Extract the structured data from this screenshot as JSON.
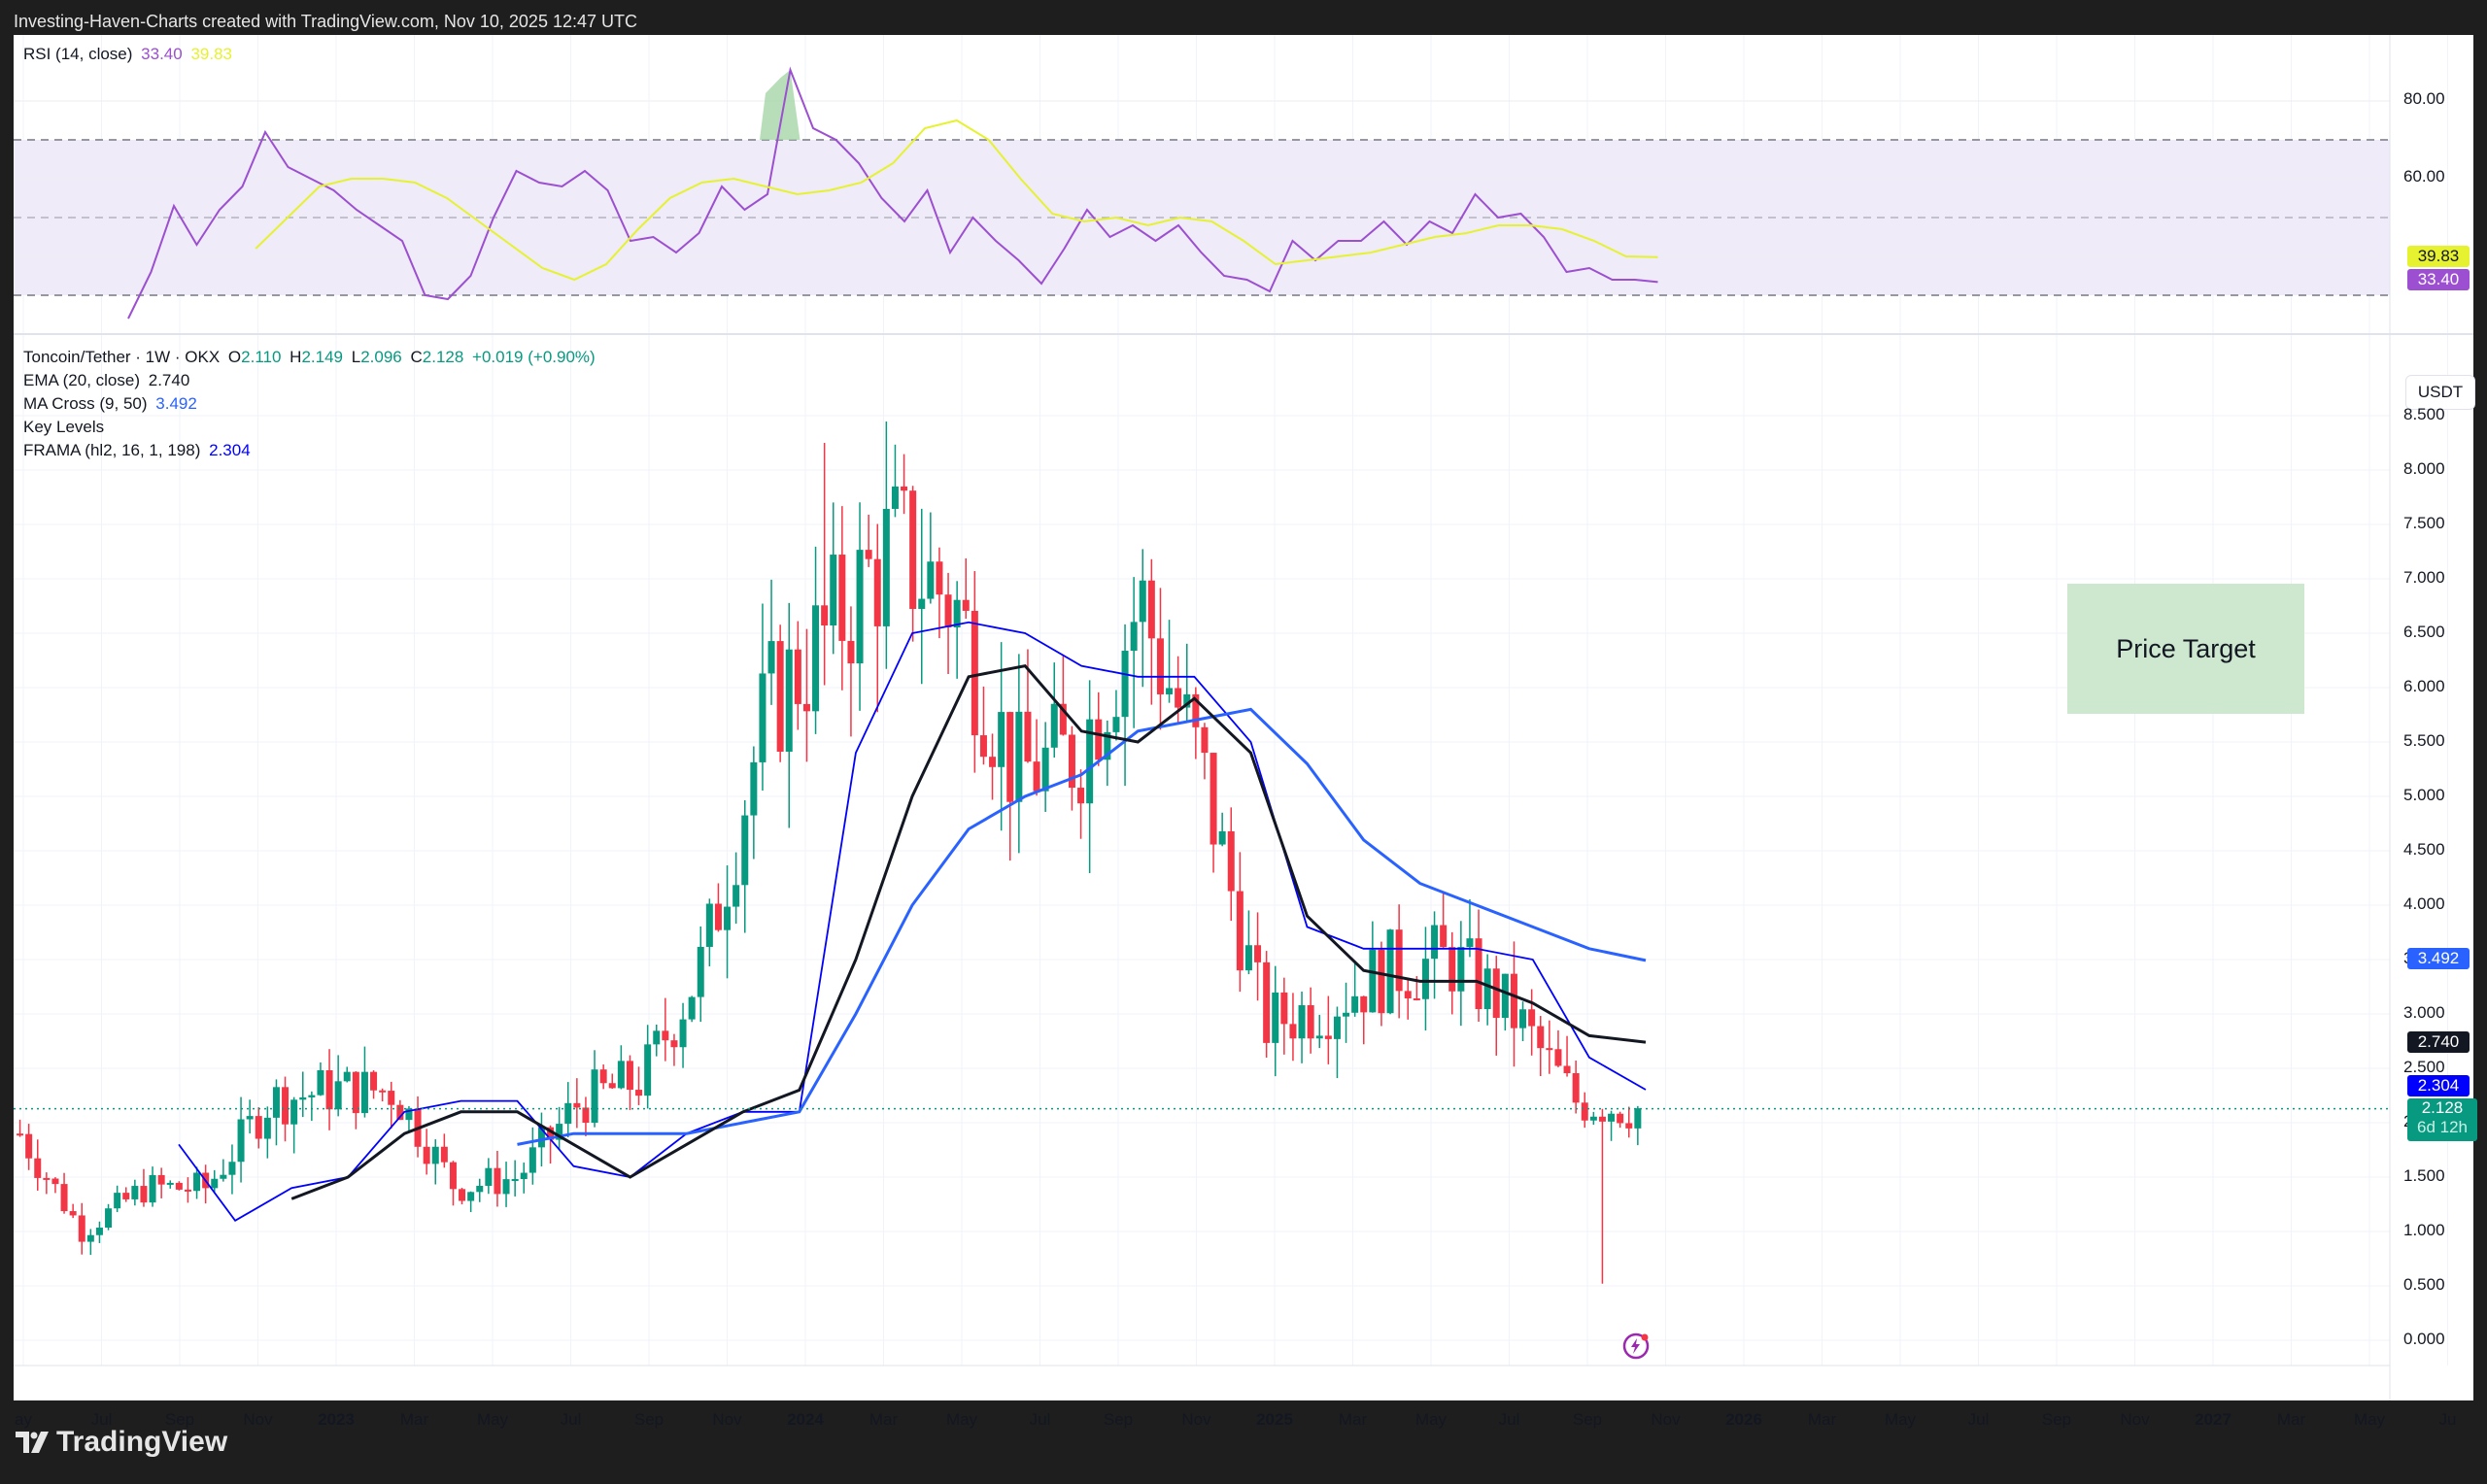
{
  "header": {
    "title": "Investing-Haven-Charts created with TradingView.com, Nov 10, 2025 12:47 UTC"
  },
  "rsi_pane": {
    "label": "RSI (14, close)",
    "rsi_value": "33.40",
    "ma_value": "39.83",
    "y_ticks": [
      "80.00",
      "60.00"
    ],
    "tag_ma": "39.83",
    "tag_rsi": "33.40",
    "colors": {
      "rsi": "#9c4fd0",
      "ma": "#e6f230",
      "band": "#efebf8",
      "overbought_fill": "#a5d6a7"
    }
  },
  "price_pane": {
    "symbol_line": {
      "symbol": "Toncoin/Tether · 1W · OKX",
      "o_label": "O",
      "o": "2.110",
      "h_label": "H",
      "h": "2.149",
      "l_label": "L",
      "l": "2.096",
      "c_label": "C",
      "c": "2.128",
      "change": "+0.019 (+0.90%)"
    },
    "indicators": [
      {
        "label": "EMA (20, close)",
        "value": "2.740",
        "color": "#131722"
      },
      {
        "label": "MA Cross (9, 50)",
        "value": "3.492",
        "color": "#2962ff"
      },
      {
        "label": "Key Levels",
        "value": "",
        "color": "#131722"
      },
      {
        "label": "FRAMA (hl2, 16, 1, 198)",
        "value": "2.304",
        "color": "#0000ff"
      }
    ],
    "currency": "USDT",
    "y_ticks": [
      "8.500",
      "8.000",
      "7.500",
      "7.000",
      "6.500",
      "6.000",
      "5.500",
      "5.000",
      "4.500",
      "4.000",
      "3.500",
      "3.000",
      "2.500",
      "2.000",
      "1.500",
      "1.000",
      "0.500",
      "0.000"
    ],
    "price_tags": {
      "ma_cross": "3.492",
      "ema": "2.740",
      "frama": "2.304",
      "last_price": "2.128",
      "countdown": "6d 12h"
    },
    "price_target_label": "Price Target"
  },
  "time_axis": [
    "ay",
    "Jul",
    "Sep",
    "Nov",
    "2023",
    "Mar",
    "May",
    "Jul",
    "Sep",
    "Nov",
    "2024",
    "Mar",
    "May",
    "Jul",
    "Sep",
    "Nov",
    "2025",
    "Mar",
    "May",
    "Jul",
    "Sep",
    "Nov",
    "2026",
    "Mar",
    "May",
    "Jul",
    "Sep",
    "Nov",
    "2027",
    "Mar",
    "May",
    "Ju"
  ],
  "footer": {
    "brand": "TradingView"
  },
  "chart_data": {
    "type": "line",
    "title": "Toncoin/Tether · 1W · OKX",
    "xlabel": "",
    "ylabel": "USDT",
    "ylim": [
      0,
      8.5
    ],
    "grid": true,
    "legend_position": "top-left",
    "x": [
      "2022-05",
      "2022-07",
      "2022-09",
      "2022-11",
      "2023-01",
      "2023-03",
      "2023-05",
      "2023-07",
      "2023-09",
      "2023-11",
      "2024-01",
      "2024-03",
      "2024-04",
      "2024-05",
      "2024-06",
      "2024-07",
      "2024-09",
      "2024-11",
      "2024-12",
      "2025-01",
      "2025-03",
      "2025-05",
      "2025-07",
      "2025-08",
      "2025-09",
      "2025-10",
      "2025-11"
    ],
    "series": [
      {
        "name": "Close (approx.)",
        "values": [
          1.9,
          1.0,
          1.4,
          1.4,
          2.2,
          2.3,
          2.3,
          1.4,
          1.5,
          2.2,
          2.4,
          3.5,
          5.8,
          6.5,
          7.3,
          6.8,
          5.2,
          5.4,
          6.8,
          5.2,
          2.9,
          3.1,
          3.4,
          3.5,
          3.0,
          2.2,
          2.128
        ]
      },
      {
        "name": "EMA (20, close)",
        "values": [
          null,
          null,
          1.3,
          1.5,
          1.9,
          2.1,
          2.1,
          1.8,
          1.5,
          1.8,
          2.1,
          2.3,
          3.5,
          5.0,
          6.1,
          6.2,
          5.6,
          5.5,
          5.9,
          5.4,
          3.9,
          3.4,
          3.3,
          3.3,
          3.1,
          2.8,
          2.74
        ]
      },
      {
        "name": "MA Cross slow (50)",
        "values": [
          null,
          null,
          null,
          null,
          null,
          null,
          1.8,
          1.9,
          1.9,
          1.9,
          2.0,
          2.1,
          3.0,
          4.0,
          4.7,
          5.0,
          5.2,
          5.6,
          5.7,
          5.8,
          5.3,
          4.6,
          4.2,
          4.0,
          3.8,
          3.6,
          3.492
        ]
      },
      {
        "name": "FRAMA (hl2, 16, 1, 198)",
        "values": [
          1.8,
          1.1,
          1.4,
          1.5,
          2.1,
          2.2,
          2.2,
          1.6,
          1.5,
          1.9,
          2.1,
          2.1,
          5.4,
          6.5,
          6.6,
          6.5,
          6.2,
          6.1,
          6.1,
          5.5,
          3.8,
          3.6,
          3.6,
          3.6,
          3.5,
          2.6,
          2.304
        ]
      }
    ],
    "annotations": [
      {
        "type": "box",
        "label": "Price Target",
        "y_range": [
          5.8,
          7.0
        ],
        "x_range": [
          "2026-11",
          "2027-05"
        ]
      },
      {
        "type": "last_price_line",
        "value": 2.128
      },
      {
        "type": "low_wick",
        "value": 0.52,
        "x": "2025-10"
      },
      {
        "type": "high",
        "value": 8.25,
        "x": "2024-06"
      }
    ],
    "rsi": {
      "title": "RSI (14, close)",
      "ylim": [
        20,
        90
      ],
      "bands": [
        30,
        50,
        70
      ],
      "y_ticks": [
        60,
        80
      ],
      "rsi_current": 33.4,
      "rsi_ma_current": 39.83,
      "rsi_values": [
        24,
        36,
        53,
        43,
        52,
        58,
        72,
        63,
        60,
        57,
        52,
        48,
        44,
        30,
        29,
        35,
        50,
        62,
        59,
        58,
        62,
        57,
        44,
        45,
        41,
        46,
        58,
        52,
        56,
        88,
        73,
        70,
        64,
        55,
        49,
        57,
        41,
        50,
        44,
        39,
        33,
        42,
        52,
        45,
        48,
        44,
        48,
        41,
        35,
        34,
        31,
        44,
        39,
        44,
        44,
        49,
        43,
        49,
        46,
        56,
        50,
        51,
        45,
        36,
        37,
        34,
        34,
        33.4
      ],
      "rsi_ma_values": [
        null,
        null,
        null,
        null,
        42,
        50,
        58,
        60,
        60,
        59,
        55,
        49,
        43,
        37,
        34,
        38,
        47,
        55,
        59,
        60,
        58,
        56,
        57,
        59,
        64,
        73,
        75,
        70,
        60,
        51,
        49,
        50,
        48,
        50,
        49,
        44,
        38,
        39,
        40,
        41,
        43,
        45,
        46,
        48,
        48,
        47,
        44,
        40,
        39.83
      ]
    }
  }
}
